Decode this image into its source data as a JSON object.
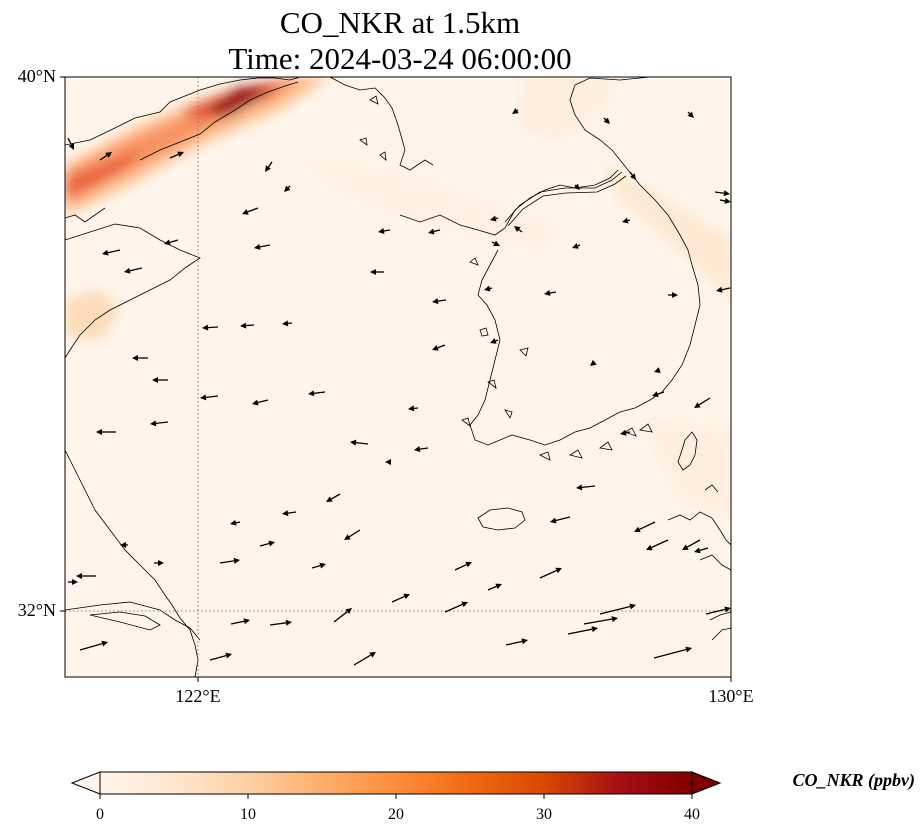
{
  "title": {
    "line1": "CO_NKR at 1.5km",
    "line2": "Time: 2024-03-24 06:00:00"
  },
  "axes": {
    "lat_ticks": [
      {
        "value": 40,
        "label": "40°N"
      },
      {
        "value": 32,
        "label": "32°N"
      }
    ],
    "lon_ticks": [
      {
        "value": 122,
        "label": "122°E"
      },
      {
        "value": 130,
        "label": "130°E"
      }
    ],
    "extent": {
      "lon_min": 120,
      "lon_max": 130,
      "lat_min": 31,
      "lat_max": 40
    }
  },
  "colorbar": {
    "label": "CO_NKR (ppbv)",
    "min": 0,
    "max": 40,
    "extend": "both",
    "ticks": [
      {
        "value": 0,
        "label": "0"
      },
      {
        "value": 10,
        "label": "10"
      },
      {
        "value": 20,
        "label": "20"
      },
      {
        "value": 30,
        "label": "30"
      },
      {
        "value": 40,
        "label": "40"
      }
    ],
    "colormap": [
      "#fff5eb",
      "#fee6ce",
      "#fdd0a2",
      "#fdae6b",
      "#fd8d3c",
      "#f16913",
      "#d94801",
      "#a50f15",
      "#7f0000"
    ]
  },
  "colors": {
    "coast": "#000000",
    "gridline": "#8a7a6a",
    "background_field": "#fff5ea"
  }
}
